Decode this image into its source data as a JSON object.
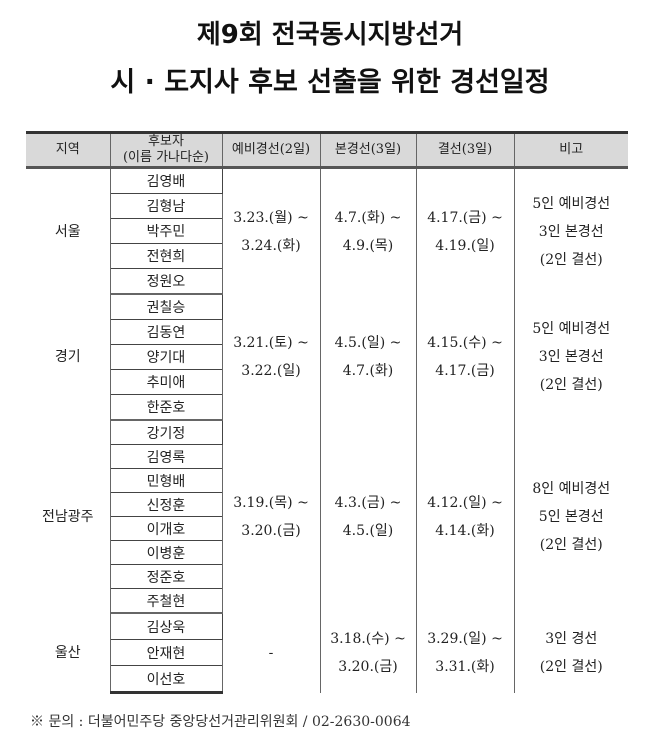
{
  "title_line1": "제9회 전국동시지방선거",
  "title_line2": "시 · 도지사 후보 선출을 위한 경선일정",
  "headers": {
    "region": "지역",
    "candidate_l1": "후보자",
    "candidate_l2": "(이름 가나다순)",
    "prelim": "예비경선(2일)",
    "main": "본경선(3일)",
    "final": "결선(3일)",
    "note": "비고"
  },
  "groups": [
    {
      "region": "서울",
      "candidates": [
        "김영배",
        "김형남",
        "박주민",
        "전현희",
        "정원오"
      ],
      "prelim": [
        "3.23.(월) ~",
        "3.24.(화)"
      ],
      "main": [
        "4.7.(화) ~",
        "4.9.(목)"
      ],
      "final": [
        "4.17.(금) ~",
        "4.19.(일)"
      ],
      "note": [
        "5인 예비경선",
        "3인 본경선",
        "(2인 결선)"
      ]
    },
    {
      "region": "경기",
      "candidates": [
        "권칠승",
        "김동연",
        "양기대",
        "추미애",
        "한준호"
      ],
      "prelim": [
        "3.21.(토) ~",
        "3.22.(일)"
      ],
      "main": [
        "4.5.(일) ~",
        "4.7.(화)"
      ],
      "final": [
        "4.15.(수) ~",
        "4.17.(금)"
      ],
      "note": [
        "5인 예비경선",
        "3인 본경선",
        "(2인 결선)"
      ]
    },
    {
      "region": "전남광주",
      "candidates": [
        "강기정",
        "김영록",
        "민형배",
        "신정훈",
        "이개호",
        "이병훈",
        "정준호",
        "주철현"
      ],
      "prelim": [
        "3.19.(목) ~",
        "3.20.(금)"
      ],
      "main": [
        "4.3.(금) ~",
        "4.5.(일)"
      ],
      "final": [
        "4.12.(일) ~",
        "4.14.(화)"
      ],
      "note": [
        "8인 예비경선",
        "5인 본경선",
        "(2인 결선)"
      ]
    },
    {
      "region": "울산",
      "candidates": [
        "김상욱",
        "안재현",
        "이선호"
      ],
      "prelim": [
        "-"
      ],
      "main": [
        "3.18.(수) ~",
        "3.20.(금)"
      ],
      "final": [
        "3.29.(일) ~",
        "3.31.(화)"
      ],
      "note": [
        "3인 경선",
        "(2인 결선)"
      ]
    }
  ],
  "footer": "※ 문의 : 더불어민주당 중앙당선거관리위원회 / 02-2630-0064"
}
